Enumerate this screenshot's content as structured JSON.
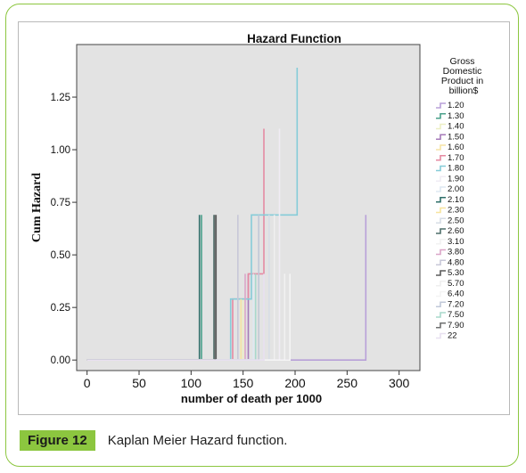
{
  "figure": {
    "label": "Figure 12",
    "caption": "Kaplan Meier Hazard function."
  },
  "chart_data": {
    "type": "line",
    "title": "Hazard Function",
    "xlabel": "number of death per 1000",
    "ylabel": "Cum Hazard",
    "xlim": [
      -10,
      320
    ],
    "ylim": [
      -0.05,
      1.5
    ],
    "x_ticks": [
      0,
      50,
      100,
      150,
      200,
      250,
      300
    ],
    "y_ticks": [
      0.0,
      0.25,
      0.5,
      0.75,
      1.0,
      1.25
    ],
    "x_tick_labels": [
      "0",
      "50",
      "100",
      "150",
      "200",
      "250",
      "300"
    ],
    "y_tick_labels": [
      "0.00",
      "0.25",
      "0.50",
      "0.75",
      "1.00",
      "1.25"
    ],
    "grid": false,
    "plot_background": "#e3e3e3",
    "legend_title": "Gross Domestic Product in billion$",
    "legend_placement": "right",
    "series": [
      {
        "name": "1.20",
        "color": "#b8a0d8",
        "points": [
          [
            0,
            0
          ],
          [
            268,
            0
          ],
          [
            268,
            0.69
          ]
        ]
      },
      {
        "name": "1.30",
        "color": "#4aa08a",
        "points": [
          [
            0,
            0
          ],
          [
            110,
            0
          ],
          [
            110,
            0.69
          ]
        ]
      },
      {
        "name": "1.40",
        "color": "#ecefc4",
        "points": [
          [
            0,
            0
          ],
          [
            150,
            0
          ],
          [
            150,
            0.29
          ]
        ]
      },
      {
        "name": "1.50",
        "color": "#a57ab8",
        "points": [
          [
            0,
            0
          ],
          [
            155,
            0
          ],
          [
            155,
            0.41
          ]
        ]
      },
      {
        "name": "1.60",
        "color": "#f6e4a6",
        "points": [
          [
            0,
            0
          ],
          [
            165,
            0
          ],
          [
            165,
            0.29
          ]
        ]
      },
      {
        "name": "1.70",
        "color": "#e58aa2",
        "points": [
          [
            0,
            0
          ],
          [
            140,
            0
          ],
          [
            140,
            0.29
          ],
          [
            155,
            0.29
          ],
          [
            155,
            0.41
          ],
          [
            170,
            0.41
          ],
          [
            170,
            1.1
          ]
        ]
      },
      {
        "name": "1.80",
        "color": "#86ccd8",
        "points": [
          [
            0,
            0
          ],
          [
            138,
            0
          ],
          [
            138,
            0.29
          ],
          [
            158,
            0.29
          ],
          [
            158,
            0.69
          ],
          [
            202,
            0.69
          ],
          [
            202,
            1.39
          ]
        ]
      },
      {
        "name": "1.90",
        "color": "#f0ecf4",
        "points": [
          [
            0,
            0
          ],
          [
            185,
            0
          ],
          [
            185,
            1.1
          ]
        ]
      },
      {
        "name": "2.00",
        "color": "#dde8f2",
        "points": [
          [
            0,
            0
          ],
          [
            160,
            0
          ],
          [
            160,
            0.41
          ]
        ]
      },
      {
        "name": "2.10",
        "color": "#2f6f6a",
        "points": [
          [
            0,
            0
          ],
          [
            108,
            0
          ],
          [
            108,
            0.69
          ]
        ]
      },
      {
        "name": "2.30",
        "color": "#f7e49f",
        "points": [
          [
            0,
            0
          ],
          [
            148,
            0
          ],
          [
            148,
            0.29
          ]
        ]
      },
      {
        "name": "2.50",
        "color": "#d7dde6",
        "points": [
          [
            0,
            0
          ],
          [
            175,
            0
          ],
          [
            175,
            0.69
          ]
        ]
      },
      {
        "name": "2.60",
        "color": "#4f6f6a",
        "points": [
          [
            0,
            0
          ],
          [
            122,
            0
          ],
          [
            122,
            0.69
          ]
        ]
      },
      {
        "name": "3.10",
        "color": "#f2f2f2",
        "points": [
          [
            0,
            0
          ],
          [
            190,
            0
          ],
          [
            190,
            0.41
          ]
        ]
      },
      {
        "name": "3.80",
        "color": "#dba6c8",
        "points": [
          [
            0,
            0
          ],
          [
            152,
            0
          ],
          [
            152,
            0.41
          ]
        ]
      },
      {
        "name": "4.80",
        "color": "#c8c8d8",
        "points": [
          [
            0,
            0
          ],
          [
            145,
            0
          ],
          [
            145,
            0.69
          ]
        ]
      },
      {
        "name": "5.30",
        "color": "#5a5a5a",
        "points": [
          [
            0,
            0
          ],
          [
            124,
            0
          ],
          [
            124,
            0.69
          ]
        ]
      },
      {
        "name": "5.70",
        "color": "#efefef",
        "points": [
          [
            0,
            0
          ],
          [
            180,
            0
          ],
          [
            180,
            0.69
          ]
        ]
      },
      {
        "name": "6.40",
        "color": "#f4f4f4",
        "points": [
          [
            0,
            0
          ],
          [
            195,
            0
          ],
          [
            195,
            0.41
          ]
        ]
      },
      {
        "name": "7.20",
        "color": "#c0c8d8",
        "points": [
          [
            0,
            0
          ],
          [
            165,
            0
          ],
          [
            165,
            0.69
          ]
        ]
      },
      {
        "name": "7.50",
        "color": "#a8d8cc",
        "points": [
          [
            0,
            0
          ],
          [
            162,
            0
          ],
          [
            162,
            0.41
          ]
        ]
      },
      {
        "name": "7.90",
        "color": "#6f7070",
        "points": [
          [
            0,
            0
          ],
          [
            123,
            0
          ],
          [
            123,
            0.69
          ]
        ]
      },
      {
        "name": "22",
        "color": "#e8e0f0",
        "points": [
          [
            0,
            0
          ],
          [
            170,
            0
          ],
          [
            170,
            0.41
          ]
        ]
      }
    ]
  }
}
